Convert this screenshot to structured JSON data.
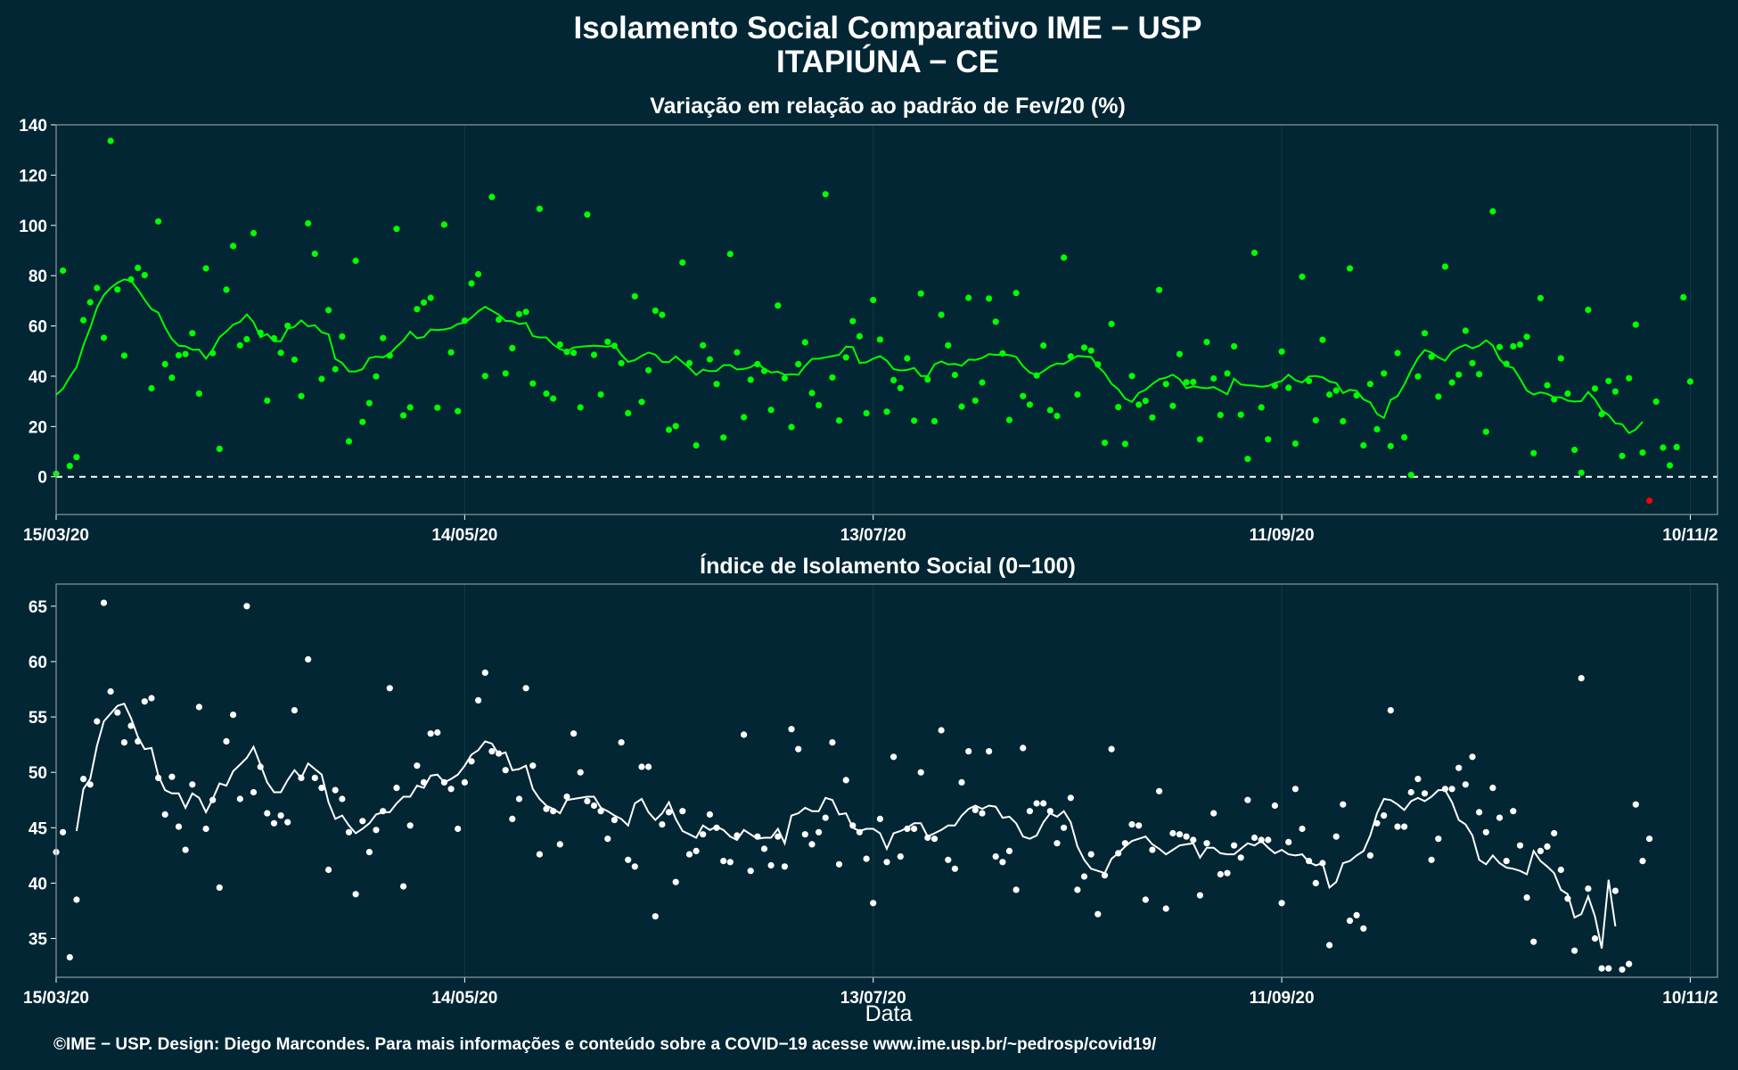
{
  "header": {
    "title_line1": "Isolamento Social Comparativo IME − USP",
    "title_line2": "ITAPIÚNA − CE"
  },
  "x_axis": {
    "label": "Data",
    "ticks": [
      "15/03/20",
      "14/05/20",
      "13/07/20",
      "11/09/20",
      "10/11/2"
    ]
  },
  "caption": "©IME − USP. Design: Diego Marcondes. Para mais informações e conteúdo sobre a COVID−19 acesse www.ime.usp.br/~pedrosp/covid19/",
  "colors": {
    "background": "#022634",
    "top_points": "#00ff00",
    "top_line": "#00ff00",
    "negative_point": "#ff0000",
    "bottom_points": "#ffffff",
    "bottom_line": "#ffffff",
    "panel_border": "#8a9aa0",
    "grid": "#123b48"
  },
  "chart_data": [
    {
      "type": "scatter",
      "title": "Variação em relação ao padrão de Fev/20 (%)",
      "x_start": "2020-03-15",
      "x_end": "2020-11-14",
      "xlabel": "Data",
      "ylabel": "",
      "ylim": [
        -15,
        140
      ],
      "yticks": [
        "0",
        "20",
        "40",
        "60",
        "80",
        "100",
        "120",
        "140"
      ],
      "grid": true,
      "reference_line": 0,
      "series": [
        {
          "kind": "points",
          "values": [
            1.2,
            82,
            4.3,
            7.8,
            62.3,
            69.4,
            75.1,
            55.3,
            133.6,
            74.5,
            48.2,
            78.5,
            83.1,
            80.2,
            35.2,
            101.6,
            44.8,
            39.4,
            48.3,
            48.8,
            57.1,
            33.1,
            82.9,
            49.2,
            11.1,
            74.4,
            91.8,
            52.3,
            54.7,
            96.9,
            57.3,
            30.3,
            55.1,
            49.3,
            60.1,
            46.6,
            32.1,
            100.8,
            88.7,
            38.9,
            66.3,
            42.8,
            55.8,
            14.1,
            85.9,
            21.8,
            29.3,
            39.9,
            55.2,
            48.2,
            98.6,
            24.4,
            27.6,
            66.7,
            69.3,
            71.2,
            27.5,
            100.3,
            49.5,
            26.1,
            62.1,
            76.9,
            80.6,
            40.1,
            111.3,
            62.5,
            41.1,
            51.2,
            64.7,
            65.6,
            37.1,
            106.6,
            33.1,
            31.1,
            52.6,
            49.7,
            49.3,
            27.6,
            104.3,
            48.5,
            32.7,
            53.7,
            52.1,
            45.2,
            25.3,
            71.8,
            29.8,
            42.4,
            66.1,
            64.4,
            18.7,
            20.2,
            85.2,
            45.2,
            12.5,
            52.3,
            46.7,
            36.9,
            15.6,
            88.6,
            49.5,
            23.7,
            38.6,
            44.8,
            42.1,
            26.6,
            68.1,
            39.2,
            19.8,
            44.8,
            53.5,
            33.3,
            28.5,
            112.4,
            39.5,
            22.4,
            47.5,
            61.9,
            55.9,
            25.3,
            70.3,
            54.6,
            25.9,
            38.4,
            35.3,
            47.1,
            22.3,
            72.9,
            38.7,
            22.1,
            64.4,
            52.3,
            40.5,
            27.9,
            71.2,
            30.3,
            37.5,
            70.9,
            61.7,
            49.1,
            22.6,
            73.1,
            32.1,
            28.7,
            40.3,
            52.2,
            26.5,
            24.2,
            87.2,
            47.9,
            32.7,
            51.4,
            50.2,
            44.7,
            13.5,
            60.8,
            27.7,
            13.1,
            40.1,
            28.7,
            30.2,
            23.6,
            74.3,
            36.9,
            28.2,
            48.8,
            37.6,
            37.7,
            14.9,
            53.6,
            39.1,
            24.6,
            41.1,
            51.9,
            24.7,
            7.1,
            89.1,
            27.6,
            14.9,
            36.2,
            49.8,
            35.4,
            13.2,
            79.6,
            38.1,
            22.5,
            54.5,
            32.7,
            34.3,
            22.1,
            82.9,
            32.4,
            12.5,
            36.9,
            18.9,
            41.1,
            12.2,
            49.2,
            15.7,
            0.7,
            39.9,
            57.1,
            47.7,
            31.9,
            83.6,
            37.5,
            40.6,
            58.1,
            45.2,
            40.8,
            17.9,
            105.6,
            51.6,
            44.9,
            51.9,
            52.6,
            55.7,
            9.4,
            71.1,
            36.4,
            30.8,
            47.1,
            33.1,
            10.7,
            1.6,
            66.4,
            35.1,
            24.9,
            38.1,
            33.9,
            8.3,
            39.2,
            60.5,
            9.6,
            -9.5,
            29.9,
            11.6,
            4.5,
            11.8,
            71.4,
            37.9
          ]
        },
        {
          "kind": "line",
          "values": [
            32.6,
            35.0,
            39.7,
            43.6,
            52.3,
            59.2,
            67.3,
            72.3,
            75.1,
            77.2,
            78.5,
            78.0,
            74.5,
            70.4,
            66.7,
            65.3,
            59.4,
            54.8,
            52.1,
            51.9,
            50.6,
            50.6,
            47.0,
            50.7,
            55.5,
            57.8,
            60.5,
            61.6,
            64.6,
            61.5,
            55.5,
            56.8,
            53.9,
            54.0,
            58.8,
            59.7,
            62.2,
            59.8,
            60.3,
            57.5,
            56.7,
            46.9,
            45.3,
            41.9,
            41.9,
            42.8,
            47.2,
            47.8,
            47.5,
            48.9,
            51.8,
            54.2,
            57.7,
            55.1,
            55.6,
            58.6,
            58.3,
            58.6,
            59.2,
            60.8,
            61.3,
            63.3,
            65.8,
            67.6,
            66.1,
            64.5,
            62.0,
            61.9,
            60.8,
            61.2,
            56.0,
            55.4,
            55.4,
            52.6,
            50.8,
            49.9,
            51.4,
            51.7,
            52.0,
            52.1,
            52.0,
            51.7,
            52.4,
            48.6,
            45.7,
            46.4,
            48.1,
            49.4,
            48.6,
            45.7,
            45.6,
            47.9,
            45.6,
            43.3,
            40.5,
            42.6,
            42.0,
            42.1,
            44.4,
            44.4,
            42.7,
            42.9,
            43.6,
            45.3,
            42.9,
            41.5,
            41.8,
            40.6,
            40.8,
            40.6,
            44.1,
            46.9,
            47.0,
            47.5,
            48.0,
            48.5,
            51.7,
            51.6,
            45.3,
            45.5,
            47.0,
            48.0,
            46.2,
            42.8,
            42.3,
            42.5,
            43.3,
            40.1,
            40.1,
            44.7,
            45.9,
            44.7,
            44.9,
            44.2,
            46.6,
            46.5,
            47.3,
            48.8,
            48.5,
            48.6,
            48.4,
            47.7,
            44.0,
            41.5,
            40.4,
            42.0,
            43.9,
            45.1,
            44.9,
            46.5,
            48.1,
            47.9,
            47.6,
            43.9,
            41.2,
            37.0,
            34.8,
            31.1,
            29.8,
            33.4,
            34.6,
            36.9,
            38.8,
            39.4,
            40.6,
            38.8,
            35.2,
            36.0,
            35.5,
            35.2,
            35.7,
            34.3,
            32.8,
            39.0,
            36.7,
            36.4,
            36.2,
            35.8,
            36.1,
            37.3,
            38.1,
            40.6,
            38.4,
            37.5,
            39.9,
            40.1,
            39.6,
            37.9,
            37.3,
            33.3,
            34.6,
            34.2,
            30.8,
            29.6,
            25.0,
            23.4,
            30.6,
            32.1,
            36.7,
            42.3,
            47.2,
            50.4,
            49.4,
            47.5,
            46.2,
            49.8,
            51.4,
            52.5,
            51.1,
            52.1,
            54.3,
            52.2,
            46.7,
            44.1,
            43.3,
            39.0,
            34.3,
            32.7,
            33.6,
            33.0,
            31.6,
            31.6,
            30.3,
            29.9,
            30.1,
            33.7,
            30.8,
            26.4,
            24.6,
            21.3,
            20.9,
            17.4,
            18.8,
            21.9
          ]
        }
      ]
    },
    {
      "type": "scatter",
      "title": "Índice de Isolamento Social (0−100)",
      "x_start": "2020-03-15",
      "x_end": "2020-11-14",
      "xlabel": "Data",
      "ylabel": "",
      "ylim": [
        31.5,
        67
      ],
      "yticks": [
        "35",
        "40",
        "45",
        "50",
        "55",
        "60",
        "65"
      ],
      "grid": true,
      "series": [
        {
          "kind": "points",
          "values": [
            42.8,
            44.6,
            33.3,
            38.5,
            49.4,
            48.9,
            54.6,
            65.3,
            57.3,
            55.4,
            52.7,
            54.2,
            52.8,
            56.4,
            56.7,
            49.5,
            46.2,
            49.6,
            45.1,
            43.0,
            48.9,
            55.9,
            44.9,
            47.5,
            39.6,
            52.8,
            55.2,
            47.6,
            65.0,
            48.2,
            50.5,
            46.3,
            45.4,
            46.1,
            45.5,
            55.6,
            49.5,
            60.2,
            49.5,
            48.6,
            41.2,
            48.4,
            47.6,
            44.6,
            39.0,
            45.6,
            42.8,
            44.8,
            46.5,
            57.6,
            48.6,
            39.7,
            45.2,
            50.6,
            49.1,
            53.5,
            53.6,
            49.1,
            48.5,
            44.9,
            49.1,
            51.0,
            56.5,
            59.0,
            51.9,
            51.7,
            50.2,
            45.8,
            47.6,
            57.6,
            50.6,
            42.6,
            46.7,
            46.5,
            43.5,
            47.8,
            53.5,
            50.0,
            47.4,
            47.0,
            46.5,
            44.0,
            45.7,
            52.7,
            42.1,
            41.5,
            50.5,
            50.5,
            37.0,
            45.3,
            46.4,
            40.1,
            46.5,
            42.6,
            42.9,
            44.4,
            46.2,
            45.0,
            42.0,
            41.9,
            44.3,
            53.4,
            41.1,
            44.2,
            43.1,
            41.6,
            44.2,
            41.5,
            53.9,
            52.1,
            44.4,
            43.5,
            44.6,
            45.9,
            52.7,
            41.7,
            49.3,
            45.2,
            44.6,
            42.2,
            38.2,
            45.8,
            41.9,
            51.4,
            42.4,
            44.9,
            44.9,
            50.0,
            44.1,
            44.0,
            53.8,
            42.1,
            41.3,
            49.1,
            51.9,
            46.6,
            46.3,
            51.9,
            42.4,
            41.9,
            42.9,
            39.4,
            52.2,
            46.5,
            47.2,
            47.2,
            46.5,
            43.6,
            45.0,
            47.7,
            39.4,
            40.6,
            42.6,
            37.2,
            40.7,
            52.1,
            42.7,
            43.6,
            45.3,
            45.2,
            38.5,
            43.0,
            48.3,
            37.7,
            44.5,
            44.4,
            44.2,
            43.9,
            38.9,
            43.6,
            46.3,
            40.8,
            40.9,
            43.4,
            42.3,
            47.5,
            44.1,
            43.9,
            43.9,
            47.0,
            38.2,
            43.7,
            48.5,
            44.9,
            42.0,
            40.0,
            41.8,
            34.4,
            44.2,
            47.1,
            36.6,
            37.1,
            35.9,
            42.5,
            45.4,
            46.1,
            55.6,
            45.1,
            45.1,
            48.2,
            49.4,
            48.1,
            42.1,
            44.0,
            48.5,
            48.5,
            50.4,
            48.9,
            51.4,
            46.4,
            44.6,
            48.6,
            45.9,
            42.0,
            46.5,
            43.4,
            38.7,
            34.7,
            42.9,
            43.3,
            44.5,
            41.2,
            38.6,
            33.9,
            58.5,
            39.5,
            35.0,
            32.3,
            32.3,
            39.3,
            32.2,
            32.7,
            47.1,
            42.0,
            44.0
          ]
        },
        {
          "kind": "line",
          "values": [
            null,
            null,
            null,
            44.7,
            48.5,
            49.4,
            52.4,
            54.6,
            55.3,
            56.0,
            56.2,
            54.9,
            53.2,
            52.1,
            52.2,
            49.7,
            48.4,
            48.1,
            48.1,
            46.8,
            48.1,
            47.7,
            46.4,
            47.6,
            49.0,
            48.8,
            50.1,
            50.7,
            51.3,
            52.3,
            50.7,
            49.1,
            48.2,
            48.2,
            49.3,
            50.2,
            49.5,
            50.8,
            50.3,
            49.8,
            47.3,
            45.8,
            46.1,
            45.2,
            44.5,
            44.9,
            45.4,
            46.2,
            46.4,
            46.4,
            47.2,
            47.8,
            47.8,
            48.8,
            48.6,
            49.7,
            49.8,
            49.1,
            49.4,
            49.8,
            50.6,
            51.6,
            52.0,
            52.8,
            52.6,
            51.6,
            51.8,
            50.2,
            50.3,
            50.6,
            48.5,
            47.6,
            47.0,
            46.7,
            46.3,
            47.5,
            47.6,
            47.7,
            47.8,
            47.8,
            46.8,
            46.5,
            46.1,
            45.8,
            45.2,
            47.2,
            47.6,
            46.4,
            45.7,
            46.3,
            47.3,
            45.8,
            44.7,
            44.4,
            44.1,
            45.2,
            44.8,
            45.1,
            44.8,
            44.2,
            43.9,
            44.8,
            44.4,
            44.0,
            44.1,
            44.1,
            44.9,
            43.6,
            46.1,
            46.3,
            46.8,
            46.5,
            46.5,
            47.7,
            47.5,
            46.2,
            46.3,
            45.0,
            44.7,
            44.9,
            44.9,
            44.5,
            43.1,
            44.5,
            44.7,
            45.0,
            45.4,
            45.4,
            44.2,
            44.5,
            44.8,
            45.2,
            45.2,
            46.1,
            46.7,
            47.0,
            46.7,
            47.0,
            46.9,
            45.9,
            46.0,
            45.4,
            44.2,
            44.0,
            44.3,
            45.5,
            46.3,
            46.0,
            46.5,
            45.5,
            43.3,
            42.1,
            41.3,
            41.1,
            40.9,
            42.2,
            42.7,
            43.3,
            43.8,
            44.0,
            44.2,
            43.5,
            43.1,
            42.6,
            43.0,
            43.4,
            43.5,
            43.6,
            42.3,
            43.2,
            43.2,
            42.7,
            42.6,
            42.6,
            43.1,
            43.6,
            43.4,
            43.8,
            43.2,
            42.7,
            43.0,
            42.6,
            42.5,
            42.6,
            41.9,
            41.6,
            41.8,
            39.6,
            40.1,
            41.8,
            42.0,
            42.5,
            42.9,
            44.3,
            46.3,
            47.6,
            47.5,
            47.1,
            46.6,
            47.4,
            47.7,
            47.4,
            47.8,
            48.4,
            48.4,
            47.3,
            45.7,
            45.3,
            44.3,
            42.1,
            41.7,
            42.5,
            41.8,
            41.4,
            41.3,
            41.1,
            40.8,
            42.9,
            42.0,
            41.5,
            40.9,
            39.4,
            39.0,
            36.9,
            37.2,
            38.8,
            37.0,
            34.1,
            40.3,
            36.1
          ]
        }
      ]
    }
  ]
}
